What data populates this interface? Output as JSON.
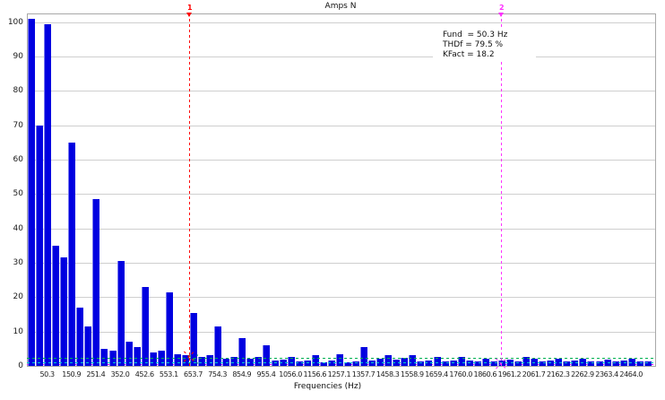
{
  "window": {
    "background": "#ffffff"
  },
  "legend": {
    "lines": [
      "Fund  = 50.3 Hz",
      "THDf = 79.5 %",
      "KFact = 18.2"
    ]
  },
  "chart_data": {
    "type": "bar",
    "title": "Amps N",
    "xlabel": "Frequencies (Hz)",
    "ylabel": "",
    "ylim": [
      0,
      102.5
    ],
    "yticks": [
      0,
      10,
      20,
      30,
      40,
      50,
      60,
      70,
      80,
      90,
      100
    ],
    "grid": true,
    "bar_color": "#0000e0",
    "x_tick_labels": [
      "50.3",
      "150.9",
      "251.4",
      "352.0",
      "452.6",
      "553.1",
      "653.7",
      "754.3",
      "854.9",
      "955.4",
      "1056.0",
      "1156.6",
      "1257.1",
      "1357.7",
      "1458.3",
      "1558.9",
      "1659.4",
      "1760.0",
      "1860.6",
      "1961.2",
      "2061.7",
      "2162.3",
      "2262.9",
      "2363.4",
      "2464.0"
    ],
    "x_tick_first_bar_index": 2,
    "x_tick_bar_step": 3,
    "values": [
      101,
      70,
      99.5,
      35,
      31.5,
      65,
      17,
      11.5,
      48.5,
      5,
      4.5,
      30.5,
      7,
      5.5,
      23,
      4,
      4.5,
      21.5,
      3.5,
      3,
      15.5,
      2.5,
      3,
      11.5,
      2,
      2.5,
      8,
      2,
      2.7,
      6,
      1.5,
      1.9,
      2.5,
      1.2,
      1.6,
      3,
      1.1,
      1.5,
      3.5,
      1,
      1.4,
      5.5,
      1.5,
      2,
      3,
      1.7,
      2.4,
      3,
      1.3,
      1.6,
      2.7,
      1.2,
      1.5,
      2.5,
      1.5,
      1.3,
      2.2,
      1.2,
      1.5,
      1.8,
      1.3,
      2.5,
      2,
      1.4,
      1.6,
      2.2,
      1.3,
      1.5,
      2,
      1.4,
      1.3,
      1.8,
      1.3,
      1.5,
      2,
      1.4,
      1.2
    ],
    "cursors": [
      {
        "label": "1",
        "color": "#ff0000",
        "axis_fraction": 0.258,
        "marker_value": 2.8
      },
      {
        "label": "2",
        "color": "#ff30ff",
        "axis_fraction": 0.755,
        "marker_value": 0.8
      }
    ],
    "extra_markers": [
      {
        "color": "#00b050",
        "axis_fraction": 0.265,
        "value": 2.2
      }
    ],
    "guide_lines": [
      {
        "color": "#ff0000",
        "value": 2.45,
        "layer": "behind"
      },
      {
        "color": "#ff00ff",
        "value": 0.6,
        "layer": "behind"
      },
      {
        "color": "#00b050",
        "value": 2.3,
        "layer": "front"
      },
      {
        "color": "#00cccc",
        "value": 1.0,
        "layer": "front"
      }
    ],
    "legend_text": [
      "Fund  = 50.3 Hz",
      "THDf = 79.5 %",
      "KFact = 18.2"
    ]
  }
}
